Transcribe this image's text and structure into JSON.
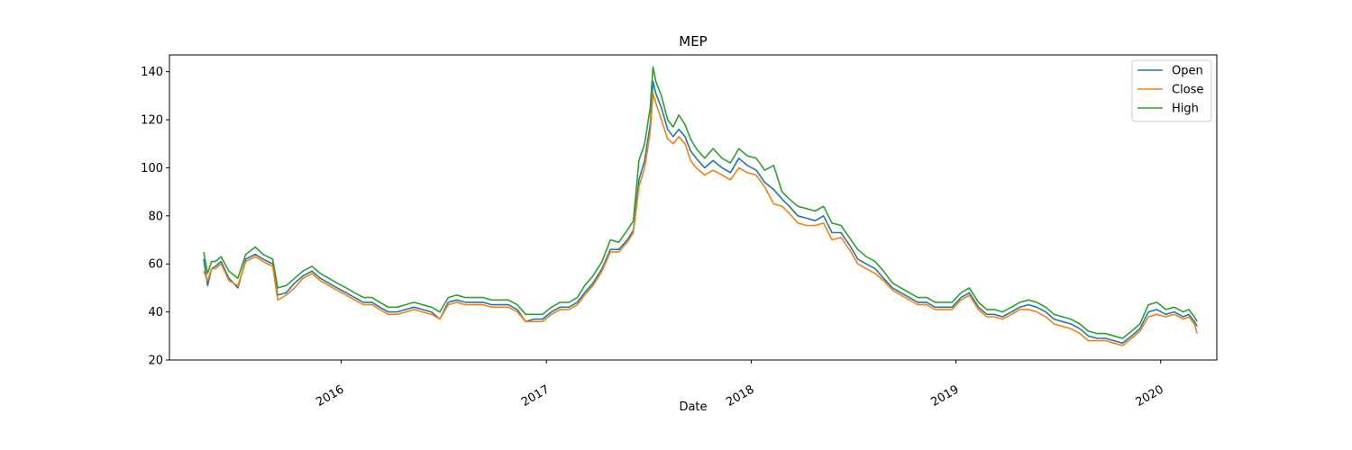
{
  "chart_data": {
    "type": "line",
    "title": "MEP",
    "xlabel": "Date",
    "ylabel": "",
    "xlim": [
      "2015-03-01",
      "2020-04-10"
    ],
    "ylim": [
      20,
      147
    ],
    "x_ticks": [
      "2016-01-01",
      "2017-01-01",
      "2018-01-01",
      "2019-01-01",
      "2020-01-01"
    ],
    "x_tick_labels": [
      "2016",
      "2017",
      "2018",
      "2019",
      "2020"
    ],
    "y_ticks": [
      20,
      40,
      60,
      80,
      100,
      120,
      140
    ],
    "grid": false,
    "legend_position": "top-right",
    "colors": {
      "Open": "#1f77b4",
      "Close": "#ff7f0e",
      "High": "#2ca02c"
    },
    "x": [
      "2015-05-01",
      "2015-05-08",
      "2015-05-15",
      "2015-05-22",
      "2015-06-01",
      "2015-06-15",
      "2015-07-01",
      "2015-07-15",
      "2015-08-01",
      "2015-08-15",
      "2015-09-01",
      "2015-09-10",
      "2015-09-25",
      "2015-10-10",
      "2015-10-25",
      "2015-11-10",
      "2015-11-25",
      "2015-12-10",
      "2015-12-25",
      "2016-01-10",
      "2016-01-25",
      "2016-02-10",
      "2016-02-25",
      "2016-03-10",
      "2016-03-25",
      "2016-04-10",
      "2016-04-25",
      "2016-05-10",
      "2016-05-25",
      "2016-06-10",
      "2016-06-25",
      "2016-07-10",
      "2016-07-25",
      "2016-08-10",
      "2016-08-25",
      "2016-09-10",
      "2016-09-25",
      "2016-10-10",
      "2016-10-25",
      "2016-11-10",
      "2016-11-25",
      "2016-12-10",
      "2016-12-25",
      "2017-01-10",
      "2017-01-25",
      "2017-02-10",
      "2017-02-25",
      "2017-03-10",
      "2017-03-25",
      "2017-04-10",
      "2017-04-25",
      "2017-05-10",
      "2017-05-25",
      "2017-06-05",
      "2017-06-15",
      "2017-06-25",
      "2017-07-05",
      "2017-07-10",
      "2017-07-15",
      "2017-07-25",
      "2017-08-05",
      "2017-08-15",
      "2017-08-25",
      "2017-09-05",
      "2017-09-15",
      "2017-09-25",
      "2017-10-10",
      "2017-10-25",
      "2017-11-10",
      "2017-11-25",
      "2017-12-10",
      "2017-12-25",
      "2018-01-10",
      "2018-01-25",
      "2018-02-10",
      "2018-02-25",
      "2018-03-10",
      "2018-03-25",
      "2018-04-10",
      "2018-04-25",
      "2018-05-10",
      "2018-05-25",
      "2018-06-10",
      "2018-06-25",
      "2018-07-10",
      "2018-07-25",
      "2018-08-10",
      "2018-08-25",
      "2018-09-10",
      "2018-09-25",
      "2018-10-10",
      "2018-10-25",
      "2018-11-10",
      "2018-11-25",
      "2018-12-10",
      "2018-12-25",
      "2019-01-10",
      "2019-01-25",
      "2019-02-10",
      "2019-02-25",
      "2019-03-10",
      "2019-03-25",
      "2019-04-10",
      "2019-04-25",
      "2019-05-10",
      "2019-05-25",
      "2019-06-10",
      "2019-06-25",
      "2019-07-10",
      "2019-07-25",
      "2019-08-10",
      "2019-08-25",
      "2019-09-10",
      "2019-09-25",
      "2019-10-10",
      "2019-10-25",
      "2019-11-10",
      "2019-11-25",
      "2019-12-10",
      "2019-12-25",
      "2020-01-10",
      "2020-01-25",
      "2020-02-10",
      "2020-02-20",
      "2020-03-01",
      "2020-03-06"
    ],
    "series": [
      {
        "name": "Open",
        "values": [
          62,
          51,
          58,
          59,
          61,
          54,
          50,
          62,
          64,
          62,
          60,
          47,
          48,
          52,
          55,
          57,
          54,
          52,
          50,
          48,
          46,
          44,
          44,
          42,
          40,
          40,
          41,
          42,
          41,
          40,
          37,
          44,
          45,
          44,
          44,
          44,
          43,
          43,
          43,
          41,
          36,
          37,
          37,
          40,
          42,
          42,
          44,
          48,
          52,
          58,
          66,
          66,
          70,
          74,
          95,
          103,
          118,
          136,
          131,
          125,
          116,
          113,
          116,
          113,
          107,
          104,
          100,
          103,
          100,
          98,
          104,
          101,
          99,
          94,
          91,
          87,
          84,
          80,
          79,
          78,
          80,
          73,
          73,
          68,
          62,
          60,
          58,
          54,
          50,
          48,
          46,
          44,
          44,
          42,
          42,
          42,
          46,
          48,
          42,
          39,
          39,
          38,
          40,
          42,
          43,
          42,
          40,
          37,
          36,
          35,
          33,
          30,
          29,
          29,
          28,
          27,
          30,
          33,
          40,
          41,
          39,
          40,
          38,
          39,
          36,
          34
        ]
      },
      {
        "name": "Close",
        "values": [
          57,
          53,
          58,
          58,
          60,
          53,
          51,
          61,
          63,
          61,
          59,
          45,
          47,
          50,
          54,
          56,
          53,
          51,
          49,
          47,
          45,
          43,
          43,
          41,
          39,
          39,
          40,
          41,
          40,
          39,
          37,
          43,
          44,
          43,
          43,
          43,
          42,
          42,
          42,
          40,
          36,
          36,
          36,
          39,
          41,
          41,
          43,
          47,
          51,
          57,
          65,
          65,
          69,
          73,
          92,
          100,
          115,
          131,
          127,
          120,
          112,
          110,
          113,
          110,
          103,
          100,
          97,
          99,
          97,
          95,
          100,
          98,
          97,
          92,
          85,
          84,
          81,
          77,
          76,
          76,
          77,
          70,
          71,
          66,
          60,
          58,
          56,
          53,
          49,
          47,
          45,
          43,
          43,
          41,
          41,
          41,
          45,
          47,
          41,
          38,
          38,
          37,
          39,
          41,
          41,
          40,
          38,
          35,
          34,
          33,
          31,
          28,
          28,
          28,
          27,
          26,
          29,
          32,
          38,
          39,
          38,
          39,
          37,
          38,
          35,
          31
        ]
      },
      {
        "name": "High",
        "values": [
          65,
          56,
          61,
          61,
          63,
          57,
          54,
          64,
          67,
          64,
          62,
          50,
          51,
          54,
          57,
          59,
          56,
          54,
          52,
          50,
          48,
          46,
          46,
          44,
          42,
          42,
          43,
          44,
          43,
          42,
          40,
          46,
          47,
          46,
          46,
          46,
          45,
          45,
          45,
          43,
          39,
          39,
          39,
          42,
          44,
          44,
          46,
          51,
          55,
          61,
          70,
          69,
          74,
          78,
          103,
          110,
          125,
          142,
          136,
          130,
          120,
          117,
          122,
          118,
          112,
          108,
          104,
          108,
          104,
          102,
          108,
          105,
          104,
          99,
          101,
          90,
          87,
          84,
          83,
          82,
          84,
          77,
          76,
          71,
          66,
          63,
          61,
          57,
          52,
          50,
          48,
          46,
          46,
          44,
          44,
          44,
          48,
          50,
          44,
          41,
          41,
          40,
          42,
          44,
          45,
          44,
          42,
          39,
          38,
          37,
          35,
          32,
          31,
          31,
          30,
          29,
          32,
          35,
          43,
          44,
          41,
          42,
          40,
          41,
          38,
          36
        ]
      }
    ]
  }
}
